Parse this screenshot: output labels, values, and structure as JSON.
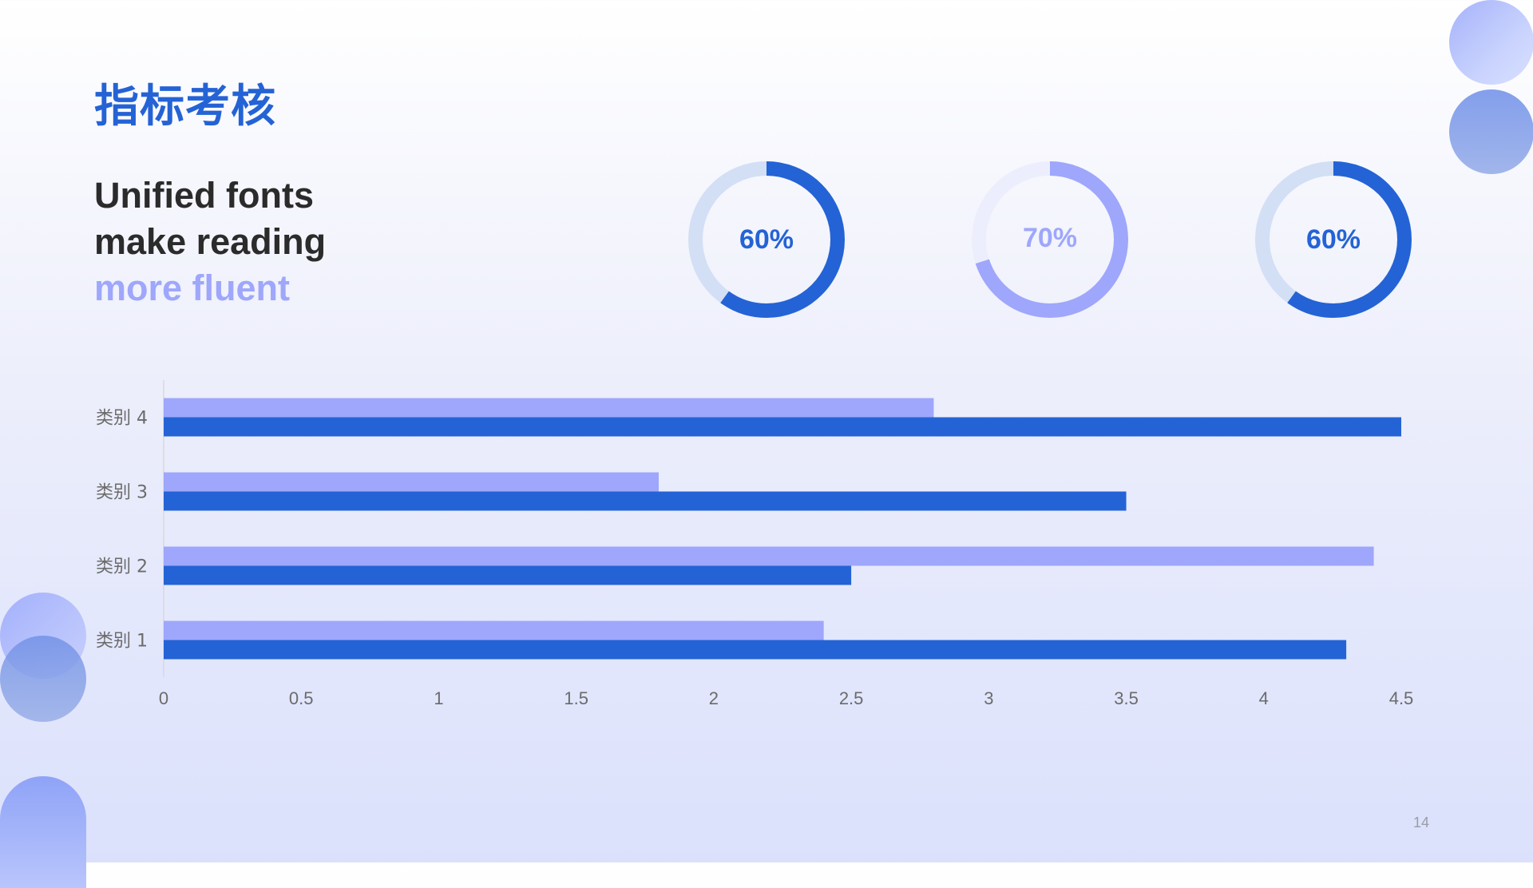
{
  "title": "指标考核",
  "subtitle": {
    "line1": "Unified fonts",
    "line2": "make reading",
    "line3": "more fluent"
  },
  "colors": {
    "title": "#2463d5",
    "dark_blue": "#2463d5",
    "light_blue": "#9ea7fb",
    "donut_track_blue": "#d3dff5",
    "donut_track_purple": "#eceefd",
    "axis_text": "#6b6b6b"
  },
  "donuts": [
    {
      "label": "60%",
      "value": 0.6,
      "color": "#2463d5",
      "track": "#d3dff5"
    },
    {
      "label": "70%",
      "value": 0.7,
      "color": "#9ea7fb",
      "track": "#eceefd"
    },
    {
      "label": "60%",
      "value": 0.6,
      "color": "#2463d5",
      "track": "#d3dff5"
    }
  ],
  "chart_data": {
    "type": "bar",
    "orientation": "horizontal",
    "categories": [
      "类别 1",
      "类别 2",
      "类别 3",
      "类别 4"
    ],
    "series": [
      {
        "values": [
          2.4,
          4.4,
          1.8,
          2.8
        ],
        "color": "#9ea7fb"
      },
      {
        "values": [
          4.3,
          2.5,
          3.5,
          4.5
        ],
        "color": "#2463d5"
      }
    ],
    "xlim": [
      0,
      4.5
    ],
    "xticks": [
      "0",
      "0.5",
      "1",
      "1.5",
      "2",
      "2.5",
      "3",
      "3.5",
      "4",
      "4.5"
    ],
    "grid": false,
    "legend": "none"
  },
  "page_number": "14"
}
